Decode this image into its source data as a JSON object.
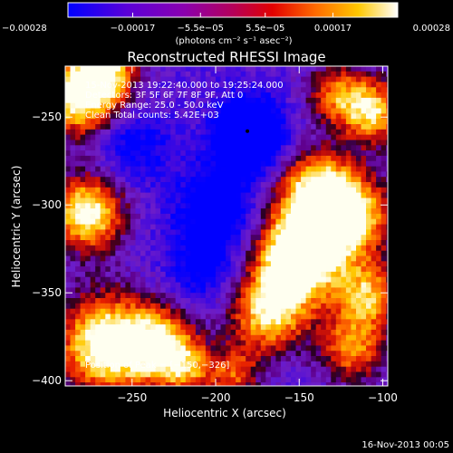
{
  "page": {
    "background": "#000000",
    "footer_timestamp": "16-Nov-2013 00:05"
  },
  "chart_data": {
    "type": "heatmap",
    "title": "Reconstructed RHESSI Image",
    "xlabel": "Heliocentric X (arcsec)",
    "ylabel": "Heliocentric Y (arcsec)",
    "xlim": [
      -290,
      -97
    ],
    "ylim": [
      -403,
      -221
    ],
    "x_ticks": [
      -250,
      -200,
      -150,
      -100
    ],
    "x_tick_labels": [
      "−250",
      "−200",
      "−150",
      "−100"
    ],
    "y_ticks": [
      -250,
      -300,
      -350,
      -400
    ],
    "y_tick_labels": [
      "−250",
      "−300",
      "−350",
      "−400"
    ],
    "colorbar": {
      "range": [
        -0.00028,
        0.00028
      ],
      "ticks": [
        -0.00028,
        -0.00017,
        -5.5e-05,
        5.5e-05,
        0.00017,
        0.00028
      ],
      "tick_labels": [
        "−0.00028",
        "−0.00017",
        "−5.5e−05",
        "5.5e−05",
        "0.00017",
        "0.00028"
      ],
      "units": "(photons cm⁻² s⁻¹ asec⁻²)",
      "colors": [
        "#0000ff",
        "#5b00d8",
        "#8a00b0",
        "#b4005a",
        "#e30000",
        "#ff6a00",
        "#ffc800",
        "#ffffff"
      ]
    },
    "info_lines": [
      "15-Nov-2013 19:22:40.000 to 19:25:24.000",
      "Detectors: 3F 5F 6F 7F 8F 9F, Att 0",
      "Energy Range: 25.0 - 50.0 keV",
      "Clean     Total counts: 5.42E+03"
    ],
    "peak_label": "Position of Peak = [−150,−326]",
    "peak_position": [
      -150,
      -326
    ],
    "min_marker": [
      -181,
      -258
    ]
  }
}
